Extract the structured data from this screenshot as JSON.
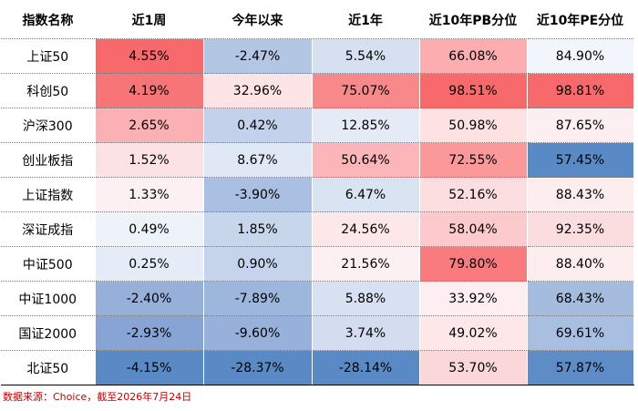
{
  "table": {
    "headers": [
      "指数名称",
      "近1周",
      "今年以来",
      "近1年",
      "近10年PB分位",
      "近10年PE分位"
    ],
    "rows": [
      {
        "name": "上证50",
        "cells": [
          "4.55%",
          "-2.47%",
          "5.54%",
          "66.08%",
          "84.90%"
        ],
        "colors": [
          "#f8696b",
          "#b3c6e4",
          "#d6e0f0",
          "#fbadb0",
          "#f2f5fb"
        ]
      },
      {
        "name": "科创50",
        "cells": [
          "4.19%",
          "32.96%",
          "75.07%",
          "98.51%",
          "98.81%"
        ],
        "colors": [
          "#f87577",
          "#fde4e6",
          "#f8898b",
          "#f8696b",
          "#f8696b"
        ]
      },
      {
        "name": "沪深300",
        "cells": [
          "2.65%",
          "0.42%",
          "12.85%",
          "50.98%",
          "87.65%"
        ],
        "colors": [
          "#fbb0b3",
          "#c3d1ea",
          "#e4eaf6",
          "#fde2e4",
          "#fdeff1"
        ]
      },
      {
        "name": "创业板指",
        "cells": [
          "1.52%",
          "8.67%",
          "50.64%",
          "72.55%",
          "57.45%"
        ],
        "colors": [
          "#fce2e5",
          "#e1e8f5",
          "#fbb6b9",
          "#fa989a",
          "#5a8ac6"
        ]
      },
      {
        "name": "上证指数",
        "cells": [
          "1.33%",
          "-3.90%",
          "6.47%",
          "52.16%",
          "88.43%"
        ],
        "colors": [
          "#fdf0f2",
          "#aabfe1",
          "#dae3f2",
          "#fcdde0",
          "#fdedef"
        ]
      },
      {
        "name": "深证成指",
        "cells": [
          "0.49%",
          "1.85%",
          "24.56%",
          "58.04%",
          "92.35%"
        ],
        "colors": [
          "#eef2f9",
          "#c8d6ec",
          "#fde7e9",
          "#fccacc",
          "#fbdcdf"
        ]
      },
      {
        "name": "中证500",
        "cells": [
          "0.25%",
          "0.90%",
          "21.56%",
          "79.80%",
          "88.40%"
        ],
        "colors": [
          "#e6ecf7",
          "#c5d3eb",
          "#fdf0f2",
          "#f97b7e",
          "#fdedef"
        ]
      },
      {
        "name": "中证1000",
        "cells": [
          "-2.40%",
          "-7.89%",
          "5.88%",
          "33.92%",
          "68.43%"
        ],
        "colors": [
          "#97b0da",
          "#9db6dc",
          "#d8e1f1",
          "#fdeff1",
          "#a5bcdf"
        ]
      },
      {
        "name": "国证2000",
        "cells": [
          "-2.93%",
          "-9.60%",
          "3.74%",
          "49.02%",
          "69.61%"
        ],
        "colors": [
          "#87a4d4",
          "#97b1da",
          "#d3ddef",
          "#fde7e9",
          "#a9bfe1"
        ]
      },
      {
        "name": "北证50",
        "cells": [
          "-4.15%",
          "-28.37%",
          "-28.14%",
          "53.70%",
          "57.87%"
        ],
        "colors": [
          "#5a8ac6",
          "#5a8ac6",
          "#5a8ac6",
          "#fcd7da",
          "#5d8cc7"
        ]
      }
    ]
  },
  "source": "数据来源：Choice，截至2026年7月24日"
}
